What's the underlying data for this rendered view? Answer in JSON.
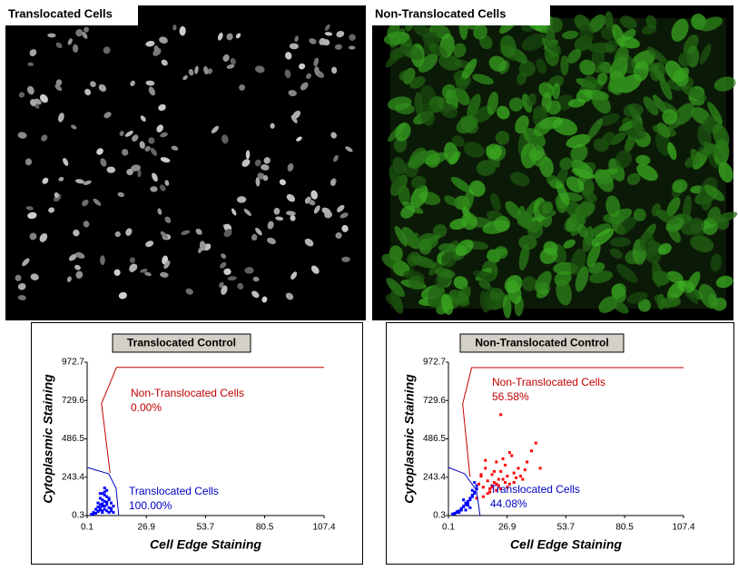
{
  "images": [
    {
      "title": "Translocated Cells"
    },
    {
      "title": "Non-Translocated Cells"
    }
  ],
  "chart_data": [
    {
      "type": "scatter",
      "title": "Translocated Control",
      "xlabel": "Cell Edge Staining",
      "ylabel": "Cytoplasmic Staining",
      "xlim": [
        0.1,
        107.4
      ],
      "ylim": [
        0.3,
        972.7
      ],
      "xticks": [
        0.1,
        26.9,
        53.7,
        80.5,
        107.4
      ],
      "yticks": [
        0.3,
        243.4,
        486.5,
        729.6,
        972.7
      ],
      "series": [
        {
          "color": "#0000ff",
          "x": [
            3,
            4,
            5,
            5,
            6,
            6,
            7,
            7,
            7,
            8,
            8,
            8,
            9,
            9,
            9,
            10,
            10,
            11,
            11,
            12,
            4,
            5,
            6,
            7,
            8,
            9,
            10,
            6,
            7,
            8,
            3,
            5,
            9,
            11,
            12,
            2,
            6,
            8,
            10,
            7
          ],
          "values": [
            20,
            40,
            30,
            80,
            50,
            110,
            60,
            140,
            20,
            90,
            40,
            150,
            70,
            120,
            30,
            100,
            50,
            80,
            30,
            60,
            15,
            25,
            70,
            100,
            130,
            160,
            110,
            140,
            30,
            60,
            10,
            55,
            85,
            45,
            20,
            8,
            35,
            175,
            20,
            75
          ]
        }
      ],
      "gates": [
        {
          "name": "Non-Translocated Cells",
          "color": "#c00000",
          "value": 0.0,
          "value_label": "0.00%",
          "x": [
            10.5,
            6.6,
            13.4,
            107.4
          ],
          "y": [
            270,
            710,
            940,
            940
          ]
        },
        {
          "name": "Translocated Cells",
          "color": "#0000c0",
          "value": 100.0,
          "value_label": "100.00%",
          "x": [
            0.1,
            9.9,
            13.2,
            14.4
          ],
          "y": [
            305,
            265,
            173,
            0.3
          ]
        }
      ]
    },
    {
      "type": "scatter",
      "title": "Non-Translocated Control",
      "xlabel": "Cell Edge Staining",
      "ylabel": "Cytoplasmic Staining",
      "xlim": [
        0.1,
        107.4
      ],
      "ylim": [
        0.3,
        972.7
      ],
      "xticks": [
        0.1,
        26.9,
        53.7,
        80.5,
        107.4
      ],
      "yticks": [
        0.3,
        243.4,
        486.5,
        729.6,
        972.7
      ],
      "series": [
        {
          "color": "#0000ff",
          "x": [
            2,
            3,
            4,
            5,
            6,
            7,
            8,
            9,
            10,
            11,
            12,
            13,
            4,
            6,
            8,
            10,
            12,
            5,
            7,
            9,
            11,
            13,
            3,
            6,
            9,
            12,
            8,
            10,
            7,
            11
          ],
          "values": [
            10,
            15,
            20,
            30,
            40,
            60,
            80,
            90,
            110,
            130,
            150,
            170,
            25,
            45,
            70,
            100,
            140,
            20,
            55,
            75,
            120,
            190,
            12,
            35,
            65,
            210,
            35,
            50,
            100,
            160
          ]
        },
        {
          "color": "#ff0000",
          "x": [
            14,
            15,
            16,
            17,
            18,
            19,
            20,
            21,
            22,
            23,
            24,
            25,
            26,
            27,
            28,
            29,
            30,
            31,
            32,
            34,
            36,
            38,
            40,
            42,
            18,
            20,
            22,
            24,
            26,
            16,
            19,
            21,
            23,
            25,
            27,
            13,
            15,
            17,
            30,
            33,
            28,
            35,
            20,
            22,
            24
          ],
          "values": [
            200,
            250,
            180,
            300,
            220,
            170,
            260,
            210,
            340,
            190,
            280,
            230,
            320,
            250,
            200,
            380,
            270,
            240,
            300,
            230,
            340,
            410,
            460,
            300,
            140,
            190,
            160,
            170,
            210,
            120,
            150,
            280,
            230,
            360,
            180,
            110,
            260,
            350,
            210,
            250,
            400,
            290,
            180,
            200,
            640
          ]
        }
      ],
      "gates": [
        {
          "name": "Non-Translocated Cells",
          "color": "#c00000",
          "value": 56.58,
          "value_label": "56.58%",
          "x": [
            9.9,
            6.6,
            10.7,
            107.4
          ],
          "y": [
            247,
            708,
            938,
            938
          ]
        },
        {
          "name": "Translocated Cells",
          "color": "#0000c0",
          "value": 44.08,
          "value_label": "44.08%",
          "x": [
            0.1,
            7.5,
            12.9,
            14.5
          ],
          "y": [
            305,
            265,
            161,
            0.3
          ]
        }
      ]
    }
  ]
}
